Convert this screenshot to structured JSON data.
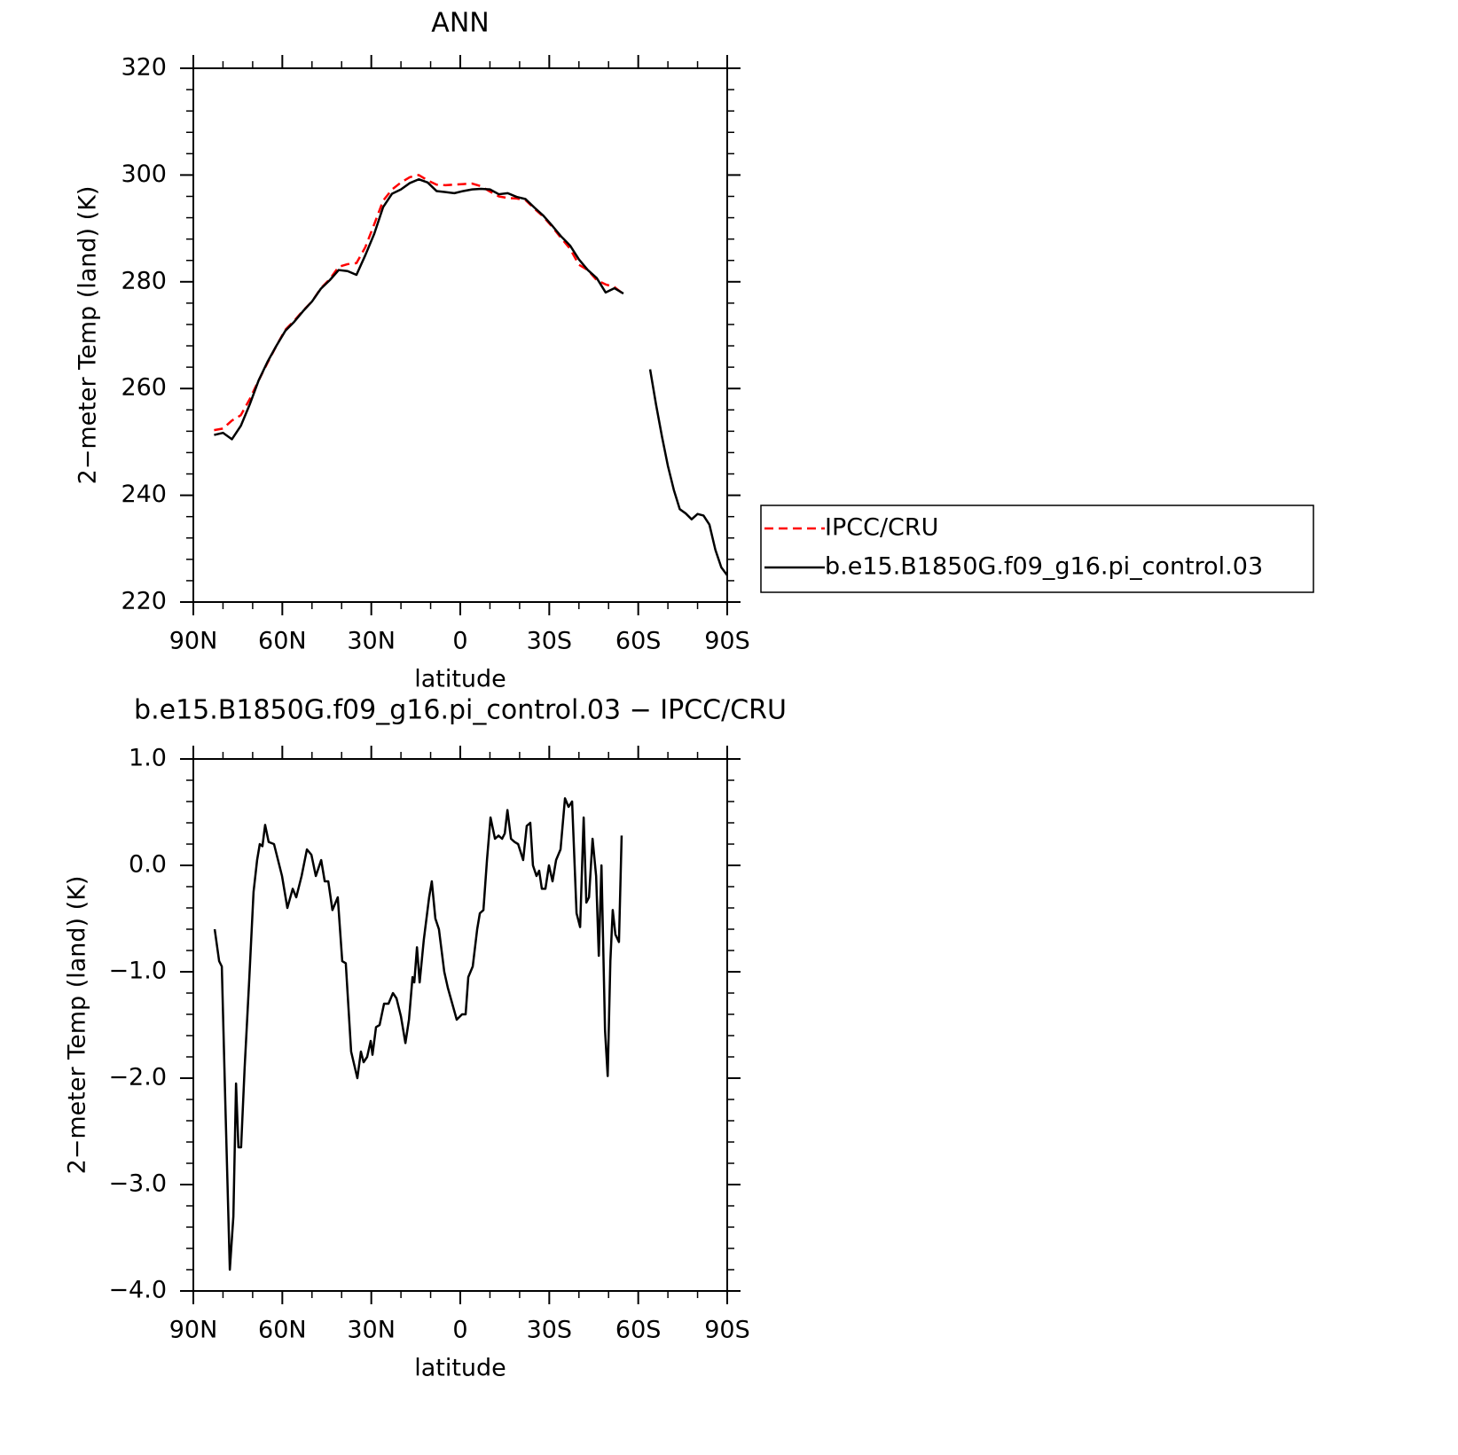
{
  "chart_data": [
    {
      "type": "line",
      "title": "ANN",
      "ylabel": "2−meter Temp (land) (K)",
      "xlabel": "latitude",
      "xlim": [
        90,
        -90
      ],
      "xticks": [
        {
          "value": 90,
          "label": "90N"
        },
        {
          "value": 60,
          "label": "60N"
        },
        {
          "value": 30,
          "label": "30N"
        },
        0,
        {
          "value": -30,
          "label": "30S"
        },
        {
          "value": -60,
          "label": "60S"
        },
        {
          "value": -90,
          "label": "90S"
        }
      ],
      "ylim": [
        220,
        320
      ],
      "yticks": [
        220,
        240,
        260,
        280,
        300,
        320
      ],
      "legend": "right",
      "x": [
        83,
        80,
        77,
        74,
        71,
        68,
        65,
        62,
        59,
        56,
        53,
        50,
        47,
        44,
        41,
        38,
        35,
        32,
        29,
        26,
        23,
        20,
        17,
        14,
        11,
        8,
        5,
        2,
        -1,
        -4,
        -7,
        -10,
        -13,
        -16,
        -19,
        -22,
        -25,
        -28,
        -31,
        -34,
        -37,
        -40,
        -43,
        -46,
        -49,
        -52,
        -55,
        -58,
        -61,
        -64,
        -66,
        -68,
        -70,
        -72,
        -74,
        -76,
        -78,
        -80,
        -82,
        -84,
        -86,
        -88,
        -90
      ],
      "series": [
        {
          "name": "IPCC/CRU",
          "color": "#ff0000",
          "dash": true,
          "values": [
            252.2,
            252.5,
            254,
            255,
            258,
            261.5,
            264.8,
            268,
            271,
            272.7,
            274.6,
            276.3,
            278.8,
            280.5,
            282.8,
            283.3,
            283.5,
            286.5,
            290.8,
            295.2,
            297.3,
            298.6,
            299.6,
            300,
            299,
            298.2,
            298.1,
            298.2,
            298.3,
            298.4,
            297.9,
            296.9,
            296,
            295.7,
            295.6,
            295.3,
            293.7,
            292.2,
            290.3,
            288.2,
            286.2,
            283.2,
            282.2,
            280.3,
            279.5,
            279,
            277.7,
            null,
            null,
            null,
            null,
            null,
            null,
            null,
            null,
            null,
            null,
            null,
            null,
            null,
            null,
            null,
            null
          ]
        },
        {
          "name": "b.e15.B1850G.f09_g16.pi_control.03",
          "color": "#000000",
          "dash": false,
          "values": [
            251.3,
            251.7,
            250.5,
            253,
            257,
            261.5,
            265,
            268,
            270.8,
            272.5,
            274.5,
            276.3,
            278.7,
            280.3,
            282.2,
            282,
            281.3,
            285,
            289,
            294,
            296.5,
            297.3,
            298.5,
            299.2,
            298.6,
            297,
            296.8,
            296.6,
            297,
            297.3,
            297.4,
            297.3,
            296.4,
            296.6,
            295.9,
            295.5,
            293.9,
            292.4,
            290.5,
            288.5,
            286.8,
            284.2,
            282.2,
            280.7,
            278,
            278.8,
            277.8,
            null,
            null,
            263.6,
            257,
            251,
            245.5,
            241,
            237.4,
            236.6,
            235.5,
            236.5,
            236.2,
            234.5,
            229.8,
            226.5,
            225
          ]
        }
      ]
    },
    {
      "type": "line",
      "title": "b.e15.B1850G.f09_g16.pi_control.03 − IPCC/CRU",
      "ylabel": "2−meter Temp (land) (K)",
      "xlabel": "latitude",
      "xlim": [
        90,
        -90
      ],
      "xticks": [
        {
          "value": 90,
          "label": "90N"
        },
        {
          "value": 60,
          "label": "60N"
        },
        {
          "value": 30,
          "label": "30N"
        },
        0,
        {
          "value": -30,
          "label": "30S"
        },
        {
          "value": -60,
          "label": "60S"
        },
        {
          "value": -90,
          "label": "90S"
        }
      ],
      "ylim": [
        -4,
        1
      ],
      "yticks": [
        {
          "value": -4,
          "label": "−4.0"
        },
        {
          "value": -3,
          "label": "−3.0"
        },
        {
          "value": -2,
          "label": "−2.0"
        },
        {
          "value": -1,
          "label": "−1.0"
        },
        {
          "value": 0,
          "label": "0.0"
        },
        {
          "value": 1,
          "label": "1.0"
        }
      ],
      "color": "#000000",
      "x": [
        82.8,
        81.3,
        80.4,
        79.2,
        77.7,
        76.5,
        75.6,
        74.8,
        73.9,
        72.7,
        71.2,
        69.7,
        68.5,
        67.6,
        66.7,
        65.8,
        64.6,
        62.8,
        60.1,
        58.3,
        56.5,
        55.3,
        53.5,
        51.7,
        50.2,
        48.7,
        46.9,
        45.7,
        44.5,
        43.1,
        41.3,
        39.8,
        38.6,
        36.8,
        34.7,
        33.5,
        32.6,
        31.4,
        30.2,
        29.6,
        28.4,
        27.2,
        25.7,
        24.2,
        22.7,
        21.5,
        20.0,
        18.5,
        17.3,
        16.1,
        15.5,
        14.6,
        13.7,
        12.3,
        10.5,
        9.6,
        8.4,
        7.2,
        5.4,
        4.2,
        2.7,
        1.2,
        -0.6,
        -1.8,
        -2.7,
        -4.2,
        -5.7,
        -6.6,
        -7.8,
        -9.0,
        -10.2,
        -11.7,
        -12.9,
        -14.1,
        -15.0,
        -15.9,
        -17.1,
        -18.3,
        -19.5,
        -21.2,
        -22.4,
        -23.6,
        -24.5,
        -25.7,
        -26.6,
        -27.5,
        -28.7,
        -29.9,
        -31.1,
        -32.3,
        -33.8,
        -35.3,
        -36.5,
        -37.7,
        -39.2,
        -40.4,
        -41.6,
        -42.5,
        -43.4,
        -44.6,
        -45.8,
        -46.7,
        -47.6,
        -48.8,
        -49.7,
        -50.6,
        -51.4,
        -52.3,
        -53.5,
        -54.4
      ],
      "values": [
        -0.6,
        -0.9,
        -0.95,
        -2.25,
        -3.8,
        -3.3,
        -2.05,
        -2.65,
        -2.65,
        -1.9,
        -1.1,
        -0.25,
        0.05,
        0.2,
        0.18,
        0.38,
        0.22,
        0.2,
        -0.1,
        -0.4,
        -0.22,
        -0.3,
        -0.1,
        0.15,
        0.1,
        -0.1,
        0.05,
        -0.15,
        -0.15,
        -0.42,
        -0.3,
        -0.9,
        -0.92,
        -1.75,
        -2.0,
        -1.75,
        -1.85,
        -1.8,
        -1.65,
        -1.78,
        -1.52,
        -1.5,
        -1.3,
        -1.3,
        -1.2,
        -1.25,
        -1.42,
        -1.67,
        -1.45,
        -1.05,
        -1.1,
        -0.77,
        -1.1,
        -0.7,
        -0.3,
        -0.15,
        -0.5,
        -0.6,
        -1.0,
        -1.15,
        -1.3,
        -1.45,
        -1.4,
        -1.4,
        -1.05,
        -0.95,
        -0.6,
        -0.45,
        -0.42,
        0.05,
        0.45,
        0.25,
        0.28,
        0.25,
        0.3,
        0.52,
        0.25,
        0.22,
        0.2,
        0.05,
        0.37,
        0.4,
        0.0,
        -0.1,
        -0.05,
        -0.22,
        -0.22,
        0.0,
        -0.15,
        0.05,
        0.15,
        0.63,
        0.55,
        0.6,
        -0.45,
        -0.58,
        0.45,
        -0.35,
        -0.3,
        0.25,
        -0.1,
        -0.85,
        0.0,
        -1.55,
        -1.98,
        -0.9,
        -0.42,
        -0.65,
        -0.72,
        0.28
      ]
    }
  ]
}
